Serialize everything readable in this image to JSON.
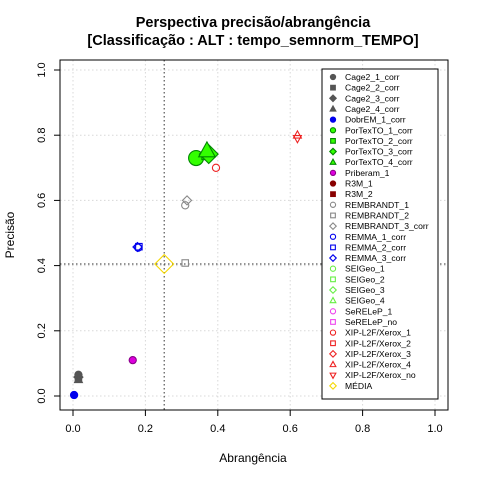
{
  "chart_data": {
    "type": "scatter",
    "title": [
      "Perspectiva precisão/abrangência",
      "[Classificação : ALT : tempo_semnorm_TEMPO]"
    ],
    "xlabel": "Abrangência",
    "ylabel": "Precisão",
    "xlim": [
      0,
      1
    ],
    "ylim": [
      0,
      1
    ],
    "xticks": [
      "0.0",
      "0.2",
      "0.4",
      "0.6",
      "0.8",
      "1.0"
    ],
    "yticks": [
      "0.0",
      "0.2",
      "0.4",
      "0.6",
      "0.8",
      "1.0"
    ],
    "grid": true,
    "reference_lines": {
      "x": 0.252,
      "y": 0.405
    },
    "legend_position": "right",
    "series": [
      {
        "name": "Cage2_1_corr",
        "shape": "circle",
        "color": "#555555",
        "fill": "#555555",
        "x": [
          0.015
        ],
        "y": [
          0.065
        ]
      },
      {
        "name": "Cage2_2_corr",
        "shape": "square",
        "color": "#555555",
        "fill": "#555555",
        "x": [
          0.015
        ],
        "y": [
          0.055
        ]
      },
      {
        "name": "Cage2_3_corr",
        "shape": "diamond",
        "color": "#555555",
        "fill": "#555555",
        "x": [
          0.015
        ],
        "y": [
          0.058
        ]
      },
      {
        "name": "Cage2_4_corr",
        "shape": "triangle",
        "color": "#555555",
        "fill": "#555555",
        "x": [
          0.015
        ],
        "y": [
          0.05
        ]
      },
      {
        "name": "DobrEM_1_corr",
        "shape": "circle",
        "color": "#0000ee",
        "fill": "#0000ee",
        "x": [
          0.003
        ],
        "y": [
          0.003
        ]
      },
      {
        "name": "PorTexTO_1_corr",
        "shape": "circle",
        "color": "#008800",
        "fill": "#33ff00",
        "x": [
          0.34
        ],
        "y": [
          0.73
        ],
        "big": true
      },
      {
        "name": "PorTexTO_2_corr",
        "shape": "square",
        "color": "#008800",
        "fill": "#33ff00",
        "x": [
          0.365
        ],
        "y": [
          0.735
        ]
      },
      {
        "name": "PorTexTO_3_corr",
        "shape": "diamond",
        "color": "#008800",
        "fill": "#33ff00",
        "x": [
          0.375
        ],
        "y": [
          0.742
        ],
        "big": true
      },
      {
        "name": "PorTexTO_4_corr",
        "shape": "triangle",
        "color": "#008800",
        "fill": "#33ff00",
        "x": [
          0.37
        ],
        "y": [
          0.752
        ],
        "big": true
      },
      {
        "name": "Priberam_1",
        "shape": "circle",
        "color": "#880088",
        "fill": "#dd00dd",
        "x": [
          0.165
        ],
        "y": [
          0.11
        ]
      },
      {
        "name": "R3M_1",
        "shape": "circle",
        "color": "#880000",
        "fill": "#880000",
        "x": [],
        "y": []
      },
      {
        "name": "R3M_2",
        "shape": "square",
        "color": "#880000",
        "fill": "#880000",
        "x": [],
        "y": []
      },
      {
        "name": "REMBRANDT_1",
        "shape": "circle",
        "color": "#888888",
        "fill": "none",
        "x": [
          0.31
        ],
        "y": [
          0.585
        ]
      },
      {
        "name": "REMBRANDT_2",
        "shape": "square",
        "color": "#888888",
        "fill": "none",
        "x": [
          0.31
        ],
        "y": [
          0.408
        ]
      },
      {
        "name": "REMBRANDT_3_corr",
        "shape": "diamond",
        "color": "#888888",
        "fill": "none",
        "x": [
          0.315
        ],
        "y": [
          0.6
        ]
      },
      {
        "name": "REMMA_1_corr",
        "shape": "circle",
        "color": "#0000ee",
        "fill": "none",
        "x": [
          0.18
        ],
        "y": [
          0.455
        ]
      },
      {
        "name": "REMMA_2_corr",
        "shape": "square",
        "color": "#0000ee",
        "fill": "none",
        "x": [
          0.182
        ],
        "y": [
          0.458
        ]
      },
      {
        "name": "REMMA_3_corr",
        "shape": "diamond",
        "color": "#0000ee",
        "fill": "none",
        "x": [
          0.178
        ],
        "y": [
          0.457
        ]
      },
      {
        "name": "SEIGeo_1",
        "shape": "circle",
        "color": "#66ee44",
        "fill": "none",
        "x": [],
        "y": []
      },
      {
        "name": "SEIGeo_2",
        "shape": "square",
        "color": "#66ee44",
        "fill": "none",
        "x": [],
        "y": []
      },
      {
        "name": "SEIGeo_3",
        "shape": "diamond",
        "color": "#66ee44",
        "fill": "none",
        "x": [],
        "y": []
      },
      {
        "name": "SEIGeo_4",
        "shape": "triangle",
        "color": "#66ee44",
        "fill": "none",
        "x": [],
        "y": []
      },
      {
        "name": "SeRELeP_1",
        "shape": "circle",
        "color": "#ee44ee",
        "fill": "none",
        "x": [],
        "y": []
      },
      {
        "name": "SeRELeP_no",
        "shape": "square",
        "color": "#ee44ee",
        "fill": "none",
        "x": [],
        "y": []
      },
      {
        "name": "XIP-L2F/Xerox_1",
        "shape": "circle",
        "color": "#ee2222",
        "fill": "none",
        "x": [
          0.395
        ],
        "y": [
          0.7
        ]
      },
      {
        "name": "XIP-L2F/Xerox_2",
        "shape": "square",
        "color": "#ee2222",
        "fill": "none",
        "x": [],
        "y": []
      },
      {
        "name": "XIP-L2F/Xerox_3",
        "shape": "diamond",
        "color": "#ee2222",
        "fill": "none",
        "x": [],
        "y": []
      },
      {
        "name": "XIP-L2F/Xerox_4",
        "shape": "triangle",
        "color": "#ee2222",
        "fill": "none",
        "x": [
          0.62
        ],
        "y": [
          0.8
        ]
      },
      {
        "name": "XIP-L2F/Xerox_no",
        "shape": "triangle-down",
        "color": "#ee2222",
        "fill": "none",
        "x": [
          0.62
        ],
        "y": [
          0.79
        ]
      },
      {
        "name": "MÉDIA",
        "shape": "diamond",
        "color": "#f5d800",
        "fill": "none",
        "x": [
          0.252
        ],
        "y": [
          0.405
        ],
        "big": true
      }
    ]
  }
}
